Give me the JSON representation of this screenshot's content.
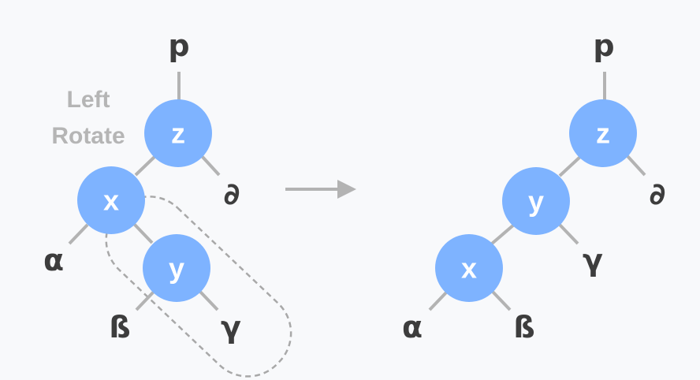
{
  "caption": {
    "line1": "Left",
    "line2": "Rotate"
  },
  "before": {
    "parent": "p",
    "nodes": {
      "z": "z",
      "x": "x",
      "y": "y"
    },
    "leaves": {
      "alpha": "α",
      "beta": "ß",
      "gamma": "γ",
      "delta": "∂"
    }
  },
  "after": {
    "parent": "p",
    "nodes": {
      "z": "z",
      "y": "y",
      "x": "x"
    },
    "leaves": {
      "alpha": "α",
      "beta": "ß",
      "gamma": "γ",
      "delta": "∂"
    }
  },
  "colors": {
    "node": "#7eb3ff",
    "edge": "#b3b3b3",
    "leaf_text": "#3d3d3d",
    "caption": "#b5b5b5"
  }
}
